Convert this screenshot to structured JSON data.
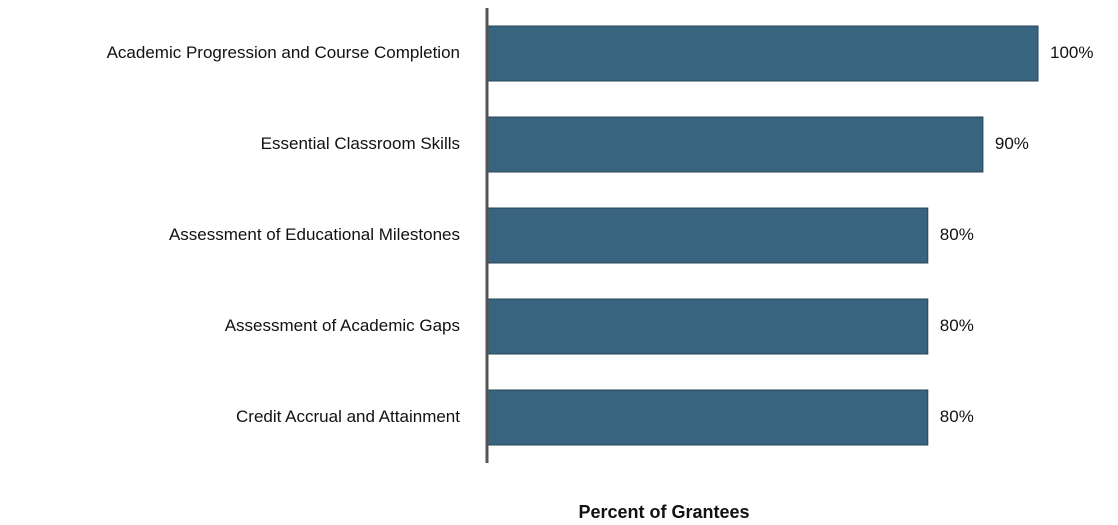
{
  "chart_data": {
    "type": "bar",
    "orientation": "horizontal",
    "categories": [
      "Academic Progression and Course Completion",
      "Essential Classroom Skills",
      "Assessment of Educational Milestones",
      "Assessment of Academic Gaps",
      "Credit Accrual and Attainment"
    ],
    "values": [
      100,
      90,
      80,
      80,
      80
    ],
    "value_labels": [
      "100%",
      "90%",
      "80%",
      "80%",
      "80%"
    ],
    "color": "#386480",
    "xlabel": "Percent of Grantees"
  }
}
